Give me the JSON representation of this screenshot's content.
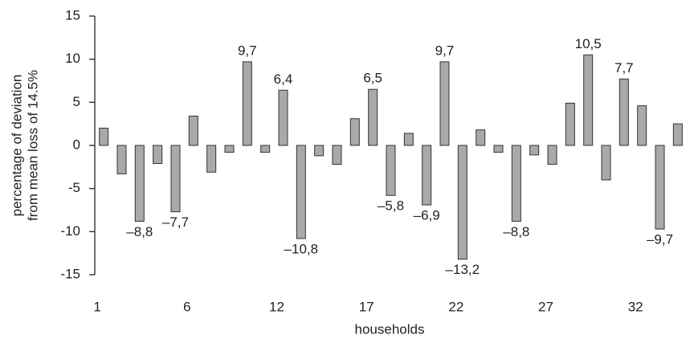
{
  "chart_data": {
    "type": "bar",
    "x_label": "households",
    "y_label": [
      "percentage of deviation",
      "from mean loss of 14.5%"
    ],
    "categories": [
      "1",
      null,
      null,
      null,
      null,
      "6",
      null,
      null,
      null,
      null,
      "12",
      null,
      null,
      null,
      null,
      "17",
      null,
      null,
      null,
      null,
      "22",
      null,
      null,
      null,
      null,
      "27",
      null,
      null,
      null,
      null,
      "32",
      null,
      null
    ],
    "values": [
      2,
      -3.3,
      -8.8,
      -2.1,
      -7.7,
      3.4,
      -3.1,
      -0.8,
      9.7,
      -0.8,
      6.4,
      -10.8,
      -1.2,
      -2.2,
      3.1,
      6.5,
      -5.8,
      1.4,
      -6.9,
      9.7,
      -13.2,
      1.8,
      -0.8,
      -8.8,
      -1.1,
      -2.2,
      4.9,
      10.5,
      -4,
      7.7,
      4.6,
      -9.7,
      2.5
    ],
    "value_labels": [
      null,
      null,
      "–8,8",
      null,
      "–7,7",
      null,
      null,
      null,
      "9,7",
      null,
      "6,4",
      "–10,8",
      null,
      null,
      null,
      "6,5",
      "–5,8",
      null,
      "–6,9",
      "9,7",
      "–13,2",
      null,
      null,
      "–8,8",
      null,
      null,
      null,
      "10,5",
      null,
      "7,7",
      null,
      "–9,7",
      null
    ],
    "color": "#a9a9a9",
    "ylim": [
      -15,
      15
    ],
    "yticks": [
      -15,
      -10,
      -5,
      0,
      5,
      10,
      15
    ]
  }
}
